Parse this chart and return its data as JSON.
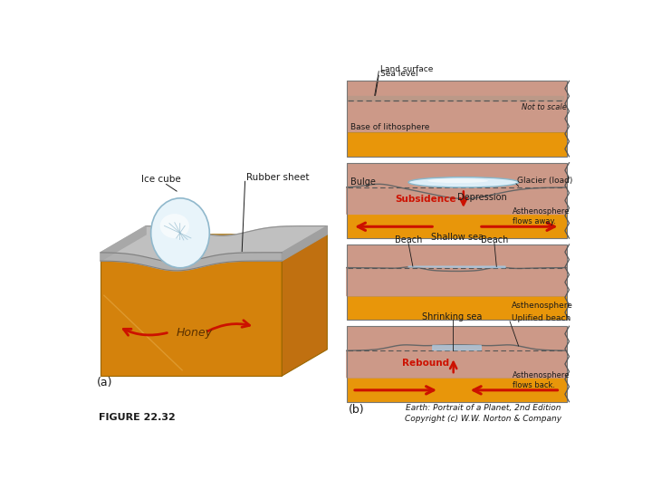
{
  "bg_color": "#ffffff",
  "title": "FIGURE 22.32",
  "panel_a_label": "(a)",
  "panel_b_label": "(b)",
  "litho_color": "#cc9988",
  "asthen_color": "#e8960a",
  "honey_front": "#d4820c",
  "honey_top": "#b8b8b8",
  "honey_side": "#c07010",
  "honey_dark": "#996600",
  "water_color": "#a8c8e0",
  "glacier_color": "#ddeef8",
  "arrow_color": "#cc1100",
  "text_color": "#1a1a1a",
  "panel1_labels": [
    "Land surface",
    "Sea level",
    "Base of lithosphere",
    "Not to scale"
  ],
  "panel2_labels": [
    "Bulge",
    "Glacier (load)",
    "Subsidence",
    "Depression",
    "Asthenosphere\nflows away."
  ],
  "panel3_labels": [
    "Shallow sea",
    "Beach",
    "Beach",
    "Asthenosphere"
  ],
  "panel4_labels": [
    "Shrinking sea",
    "Uplified beach",
    "Rebound",
    "Asthenosphere\nflows back."
  ],
  "analog_labels": [
    "Ice cube",
    "Rubber sheet",
    "Honey"
  ],
  "copyright": "Earth: Portrait of a Planet, 2nd Edition\nCopyright (c) W.W. Norton & Company"
}
